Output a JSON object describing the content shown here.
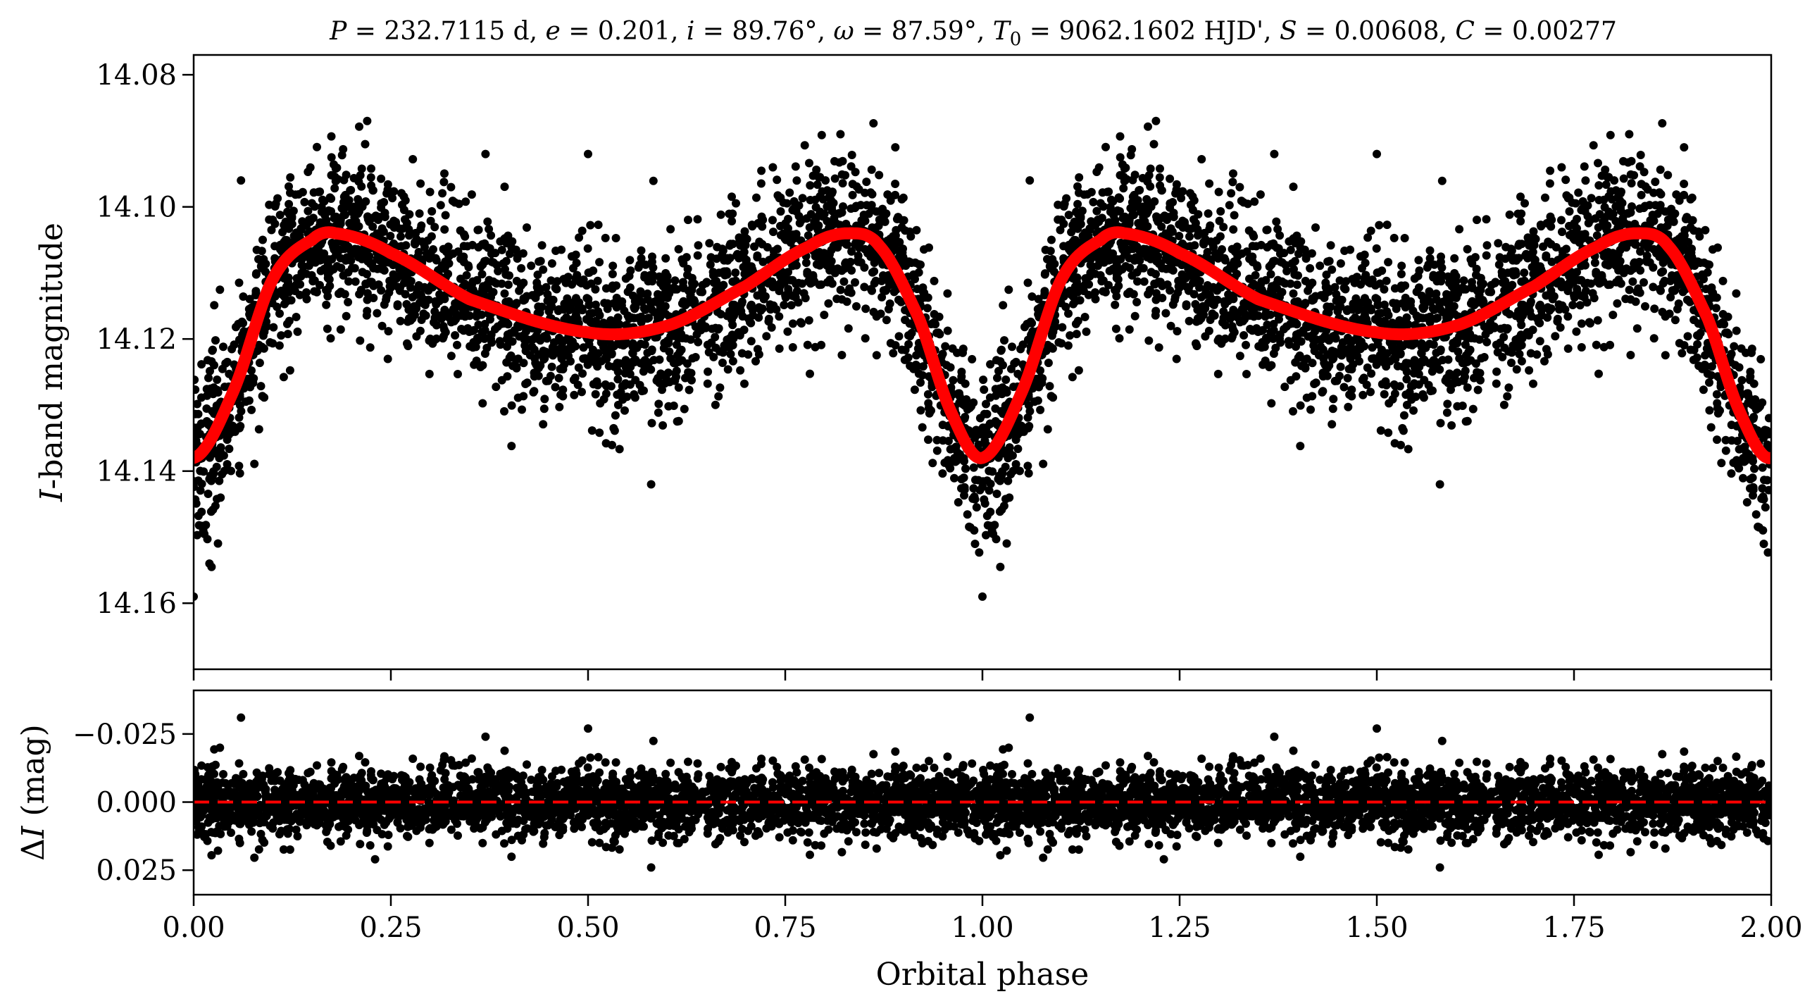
{
  "chart_data": [
    {
      "panel": "top",
      "type": "scatter",
      "title": "P = 232.7115 d, e = 0.201, i = 89.76°, ω = 87.59°, T0 = 9062.1602 HJD', S = 0.00608, C = 0.00277",
      "title_parts": {
        "P_sym": "P",
        "P_val": " = 232.7115 d, ",
        "e_sym": "e",
        "e_val": " = 0.201, ",
        "i_sym": "i",
        "i_val": " = 89.76°, ",
        "w_sym": "ω",
        "w_val": " = 87.59°, ",
        "T_sym": "T",
        "T_sub": "0",
        "T_val": " = 9062.1602 HJD', ",
        "S_sym": "S",
        "S_val": " = 0.00608, ",
        "C_sym": "C",
        "C_val": " = 0.00277"
      },
      "ylabel_italic": "I",
      "ylabel_rest": "-band magnitude",
      "xlim": [
        0.0,
        2.0
      ],
      "ylim": [
        14.17,
        14.077
      ],
      "y_inverted": true,
      "yticks": [
        14.08,
        14.1,
        14.12,
        14.14,
        14.16
      ],
      "ytick_labels": [
        "14.08",
        "14.10",
        "14.12",
        "14.14",
        "14.16"
      ],
      "xticks": [
        0.0,
        0.25,
        0.5,
        0.75,
        1.0,
        1.25,
        1.5,
        1.75,
        2.0
      ],
      "model": {
        "color": "#ff0000",
        "description_points": {
          "phase": [
            0.0,
            0.05,
            0.1,
            0.15,
            0.18,
            0.25,
            0.35,
            0.5,
            0.6,
            0.7,
            0.78,
            0.83,
            0.87,
            0.92,
            0.96,
            1.0
          ],
          "mag": [
            14.138,
            14.128,
            14.111,
            14.105,
            14.104,
            14.107,
            14.114,
            14.119,
            14.118,
            14.112,
            14.106,
            14.104,
            14.106,
            14.117,
            14.131,
            14.138
          ]
        },
        "period_in_plot": 1.0
      },
      "observations": {
        "color": "#000000",
        "scatter_sigma": 0.006,
        "outlier_points": [
          {
            "x": 0.0,
            "y": 14.159
          },
          {
            "x": 0.02,
            "y": 14.154
          },
          {
            "x": 0.06,
            "y": 14.096
          },
          {
            "x": 0.22,
            "y": 14.087
          },
          {
            "x": 0.37,
            "y": 14.092
          },
          {
            "x": 0.5,
            "y": 14.092
          },
          {
            "x": 0.58,
            "y": 14.142
          },
          {
            "x": 0.82,
            "y": 14.089
          },
          {
            "x": 1.0,
            "y": 14.159
          },
          {
            "x": 1.06,
            "y": 14.096
          },
          {
            "x": 1.22,
            "y": 14.087
          },
          {
            "x": 1.37,
            "y": 14.092
          },
          {
            "x": 1.5,
            "y": 14.092
          },
          {
            "x": 1.58,
            "y": 14.142
          },
          {
            "x": 1.82,
            "y": 14.089
          }
        ]
      }
    },
    {
      "panel": "bottom",
      "type": "scatter",
      "xlabel": "Orbital phase",
      "ylabel_delta": "Δ",
      "ylabel_italic": "I",
      "ylabel_rest": " (mag)",
      "xlim": [
        0.0,
        2.0
      ],
      "ylim": [
        0.034,
        -0.041
      ],
      "y_inverted": true,
      "yticks": [
        -0.025,
        0.0,
        0.025
      ],
      "ytick_labels": [
        "−0.025",
        "0.000",
        "0.025"
      ],
      "xticks": [
        0.0,
        0.25,
        0.5,
        0.75,
        1.0,
        1.25,
        1.5,
        1.75,
        2.0
      ],
      "xtick_labels": [
        "0.00",
        "0.25",
        "0.50",
        "0.75",
        "1.00",
        "1.25",
        "1.50",
        "1.75",
        "2.00"
      ],
      "zero_line": {
        "y": 0.0,
        "color": "#ff0000",
        "style": "dashed"
      },
      "residuals": {
        "color": "#000000",
        "scatter_sigma": 0.006,
        "outlier_points": [
          {
            "x": 0.06,
            "y": -0.031
          },
          {
            "x": 0.5,
            "y": -0.027
          },
          {
            "x": 1.06,
            "y": -0.031
          },
          {
            "x": 1.5,
            "y": -0.027
          },
          {
            "x": 0.37,
            "y": -0.024
          },
          {
            "x": 1.37,
            "y": -0.024
          },
          {
            "x": 0.58,
            "y": 0.024
          },
          {
            "x": 1.58,
            "y": 0.024
          },
          {
            "x": 0.23,
            "y": 0.021
          },
          {
            "x": 1.23,
            "y": 0.021
          }
        ]
      }
    }
  ]
}
